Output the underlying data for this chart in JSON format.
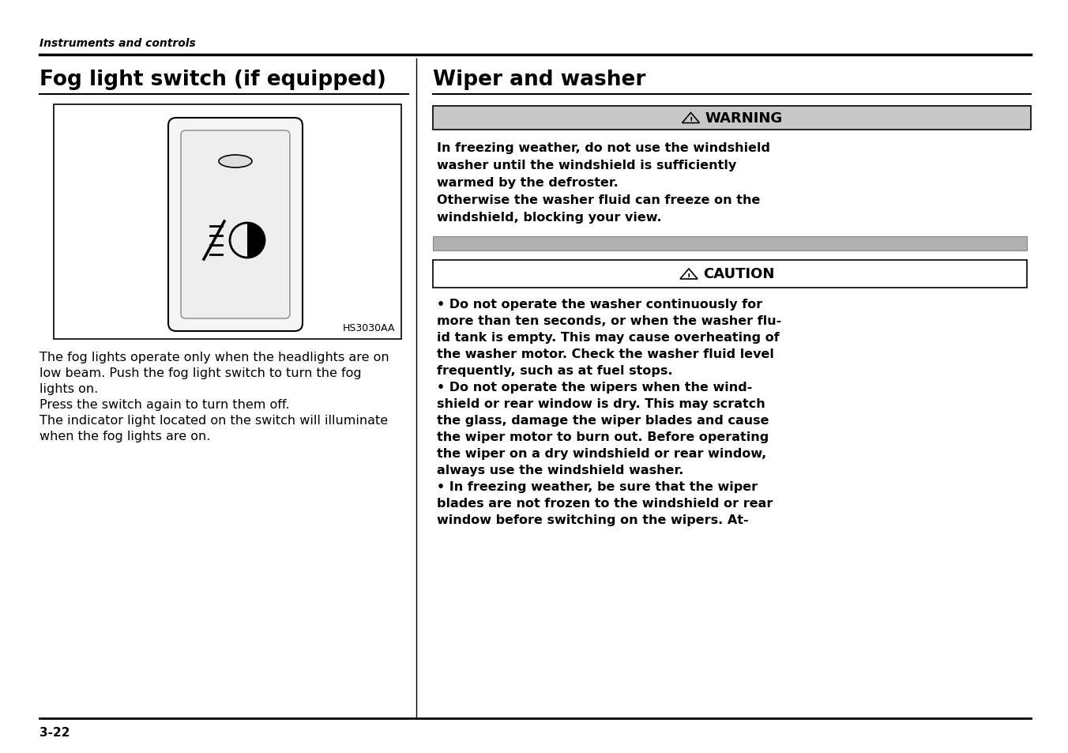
{
  "bg_color": "#ffffff",
  "header_italic": "Instruments and controls",
  "left_title": "Fog light switch (if equipped)",
  "right_title": "Wiper and washer",
  "warning_bg": "#c8c8c8",
  "warning_text": [
    "In freezing weather, do not use the windshield",
    "washer until the windshield is sufficiently",
    "warmed by the defroster.",
    "Otherwise the washer fluid can freeze on the",
    "windshield, blocking your view."
  ],
  "caution_text": [
    "• Do not operate the washer continuously for",
    "more than ten seconds, or when the washer flu-",
    "id tank is empty. This may cause overheating of",
    "the washer motor. Check the washer fluid level",
    "frequently, such as at fuel stops.",
    "• Do not operate the wipers when the wind-",
    "shield or rear window is dry. This may scratch",
    "the glass, damage the wiper blades and cause",
    "the wiper motor to burn out. Before operating",
    "the wiper on a dry windshield or rear window,",
    "always use the windshield washer.",
    "• In freezing weather, be sure that the wiper",
    "blades are not frozen to the windshield or rear",
    "window before switching on the wipers. At-"
  ],
  "left_body_text": [
    "The fog lights operate only when the headlights are on",
    "low beam. Push the fog light switch to turn the fog",
    "lights on.",
    "Press the switch again to turn them off.",
    "The indicator light located on the switch will illuminate",
    "when the fog lights are on."
  ],
  "image_label": "HS3030AA",
  "page_number": "3-22",
  "divider_color": "#000000",
  "text_color": "#000000",
  "gray_bar_color": "#b0b0b0"
}
